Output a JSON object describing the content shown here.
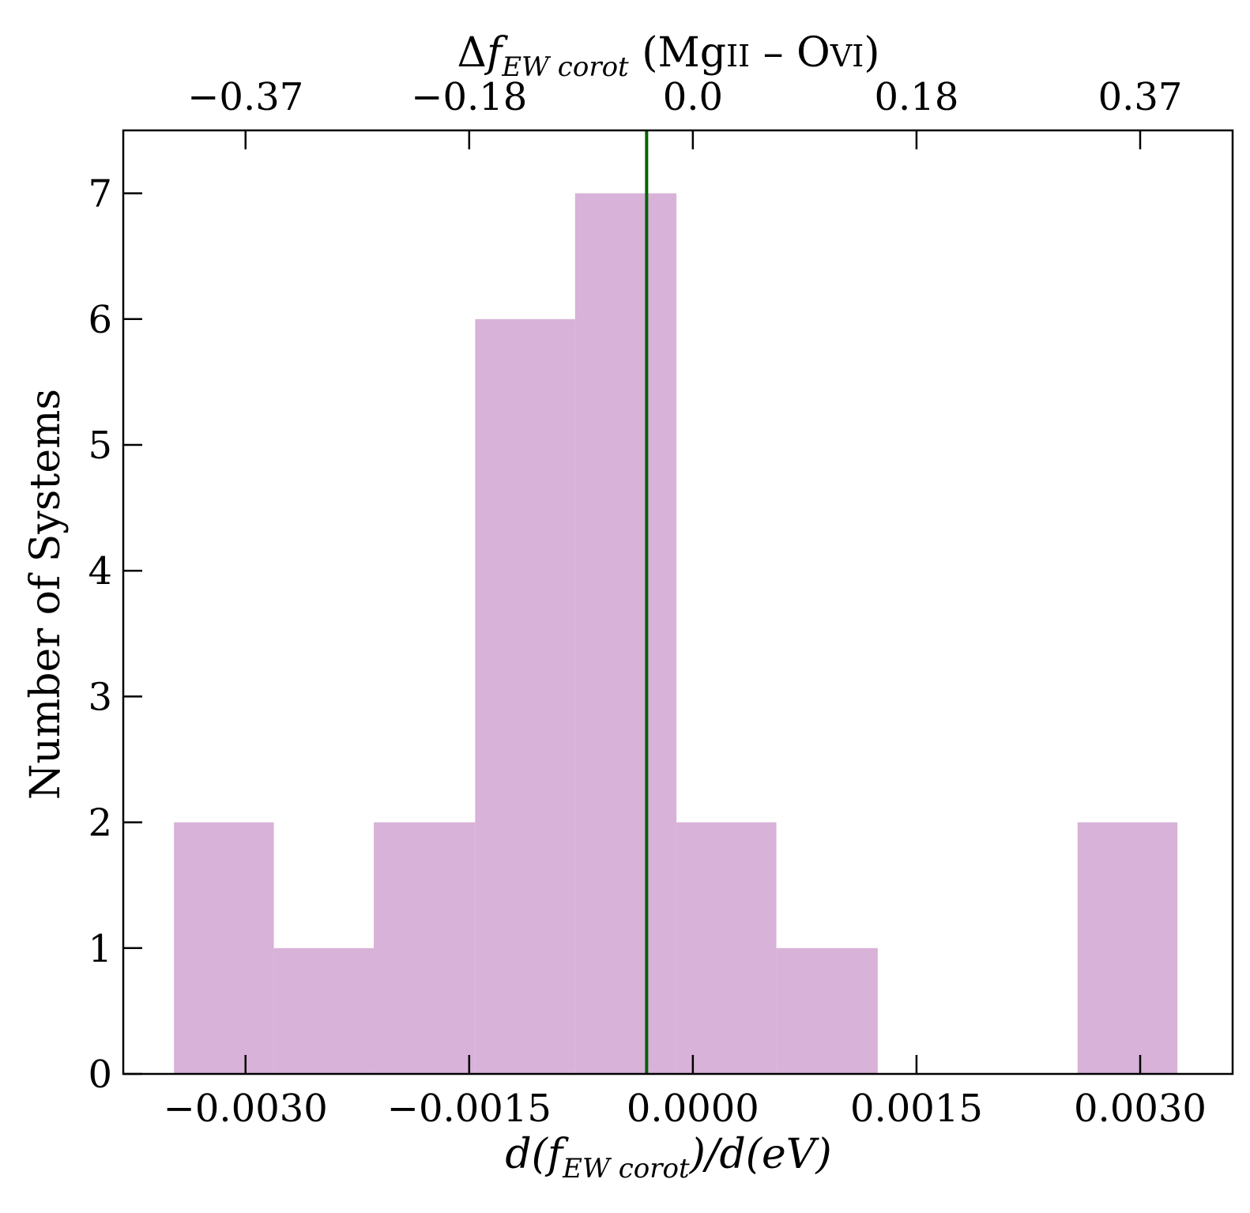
{
  "chart_data": {
    "type": "bar",
    "ylabel": "Number of Systems",
    "xlabel_bottom": "d(f_EWcorot)/d(eV)",
    "xlabel_top": "Δf_EWcorot (Mg II – O VI)",
    "xlim": [
      -0.00382,
      0.00362
    ],
    "ylim": [
      0,
      7.5
    ],
    "bins": [
      {
        "x0": -0.00348,
        "x1": -0.00281,
        "count": 2
      },
      {
        "x0": -0.00281,
        "x1": -0.00214,
        "count": 1
      },
      {
        "x0": -0.00214,
        "x1": -0.00146,
        "count": 2
      },
      {
        "x0": -0.00146,
        "x1": -0.00079,
        "count": 6
      },
      {
        "x0": -0.00079,
        "x1": -0.00011,
        "count": 7
      },
      {
        "x0": -0.00011,
        "x1": 0.00056,
        "count": 2
      },
      {
        "x0": 0.00056,
        "x1": 0.00124,
        "count": 1
      },
      {
        "x0": 0.00124,
        "x1": 0.00191,
        "count": 0
      },
      {
        "x0": 0.00191,
        "x1": 0.00258,
        "count": 0
      },
      {
        "x0": 0.00258,
        "x1": 0.00325,
        "count": 2
      }
    ],
    "bar_color": "#d8b2d8",
    "vline": {
      "x": -0.00031,
      "color": "#006400"
    },
    "xticks_bottom": [
      {
        "value": -0.003,
        "label": "−0.0030"
      },
      {
        "value": -0.0015,
        "label": "−0.0015"
      },
      {
        "value": 0.0,
        "label": "0.0000"
      },
      {
        "value": 0.0015,
        "label": "0.0015"
      },
      {
        "value": 0.003,
        "label": "0.0030"
      }
    ],
    "xticks_top": [
      {
        "value": -0.003,
        "label": "−0.37"
      },
      {
        "value": -0.0015,
        "label": "−0.18"
      },
      {
        "value": 0.0,
        "label": "0.0"
      },
      {
        "value": 0.0015,
        "label": "0.18"
      },
      {
        "value": 0.003,
        "label": "0.37"
      }
    ],
    "yticks": [
      0,
      1,
      2,
      3,
      4,
      5,
      6,
      7
    ],
    "grid": false
  }
}
